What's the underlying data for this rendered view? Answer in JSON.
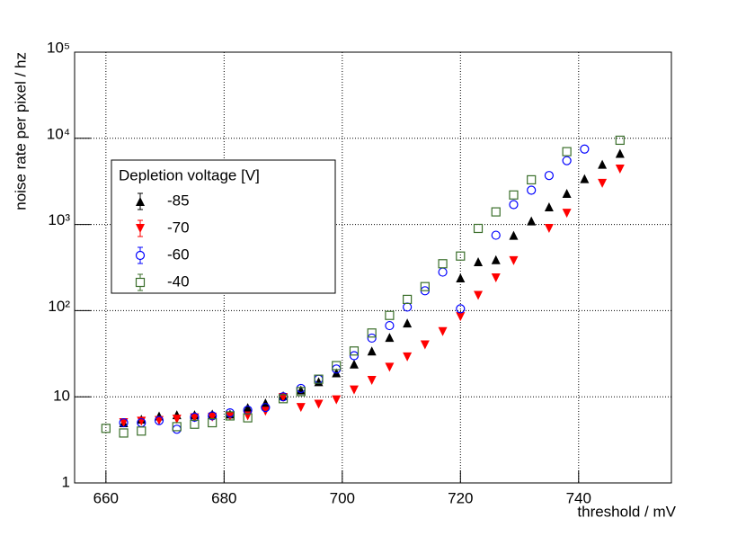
{
  "chart_data": {
    "type": "scatter",
    "xlabel": "threshold / mV",
    "ylabel": "noise rate per pixel / hz",
    "legend_title": "Depletion voltage [V]",
    "legend": "upper left",
    "grid": true,
    "log_y": true,
    "x": [
      660,
      663,
      666,
      669,
      672,
      675,
      678,
      681,
      684,
      687,
      690,
      693,
      696,
      699,
      702,
      705,
      708,
      711,
      714,
      717,
      720,
      723,
      726,
      729,
      732,
      735,
      738,
      741,
      744,
      747
    ],
    "series": [
      {
        "name": "-85",
        "color": "#000000",
        "marker": "triangle-up",
        "values": [
          null,
          5.0,
          5.5,
          6.0,
          6.2,
          6.2,
          6.3,
          6.3,
          7.5,
          8.5,
          10.3,
          12,
          15,
          19,
          24,
          34,
          49,
          72,
          null,
          null,
          240,
          370,
          390,
          750,
          1100,
          1600,
          2300,
          3400,
          5000,
          6700
        ]
      },
      {
        "name": "-70",
        "color": "#ff0000",
        "marker": "triangle-down",
        "values": [
          null,
          5.0,
          5.2,
          5.3,
          5.5,
          5.7,
          5.8,
          6.0,
          6.0,
          6.8,
          9.8,
          7.5,
          8.2,
          9.2,
          12,
          15.5,
          22,
          29,
          40,
          57,
          85,
          150,
          240,
          380,
          null,
          900,
          1350,
          null,
          3000,
          4400
        ]
      },
      {
        "name": "-60",
        "color": "#0000ff",
        "marker": "circle",
        "values": [
          null,
          5.0,
          5.0,
          5.3,
          4.2,
          5.8,
          6.0,
          6.5,
          7.0,
          7.5,
          10,
          12.5,
          16,
          21,
          30,
          48,
          67,
          110,
          170,
          280,
          105,
          null,
          750,
          1700,
          2500,
          3700,
          5500,
          7500,
          null,
          null
        ]
      },
      {
        "name": "-40",
        "color": "#3a6e2a",
        "marker": "square",
        "values": [
          4.3,
          3.8,
          4.0,
          null,
          4.5,
          4.8,
          5.0,
          6.0,
          5.7,
          null,
          9.5,
          11.5,
          16,
          23,
          34,
          55,
          88,
          135,
          190,
          350,
          430,
          900,
          1400,
          2200,
          3300,
          null,
          7000,
          null,
          null,
          9500
        ]
      }
    ],
    "xlim": [
      654.7,
      755.7
    ],
    "xticks": [
      660,
      680,
      700,
      720,
      740
    ],
    "ylim": [
      1,
      100000
    ],
    "yticks": [
      1,
      10,
      {
        "value": 100,
        "label": "10²"
      },
      {
        "value": 1000,
        "label": "10³"
      },
      {
        "value": 10000,
        "label": "10⁴"
      },
      {
        "value": 100000,
        "label": "10⁵"
      }
    ]
  }
}
